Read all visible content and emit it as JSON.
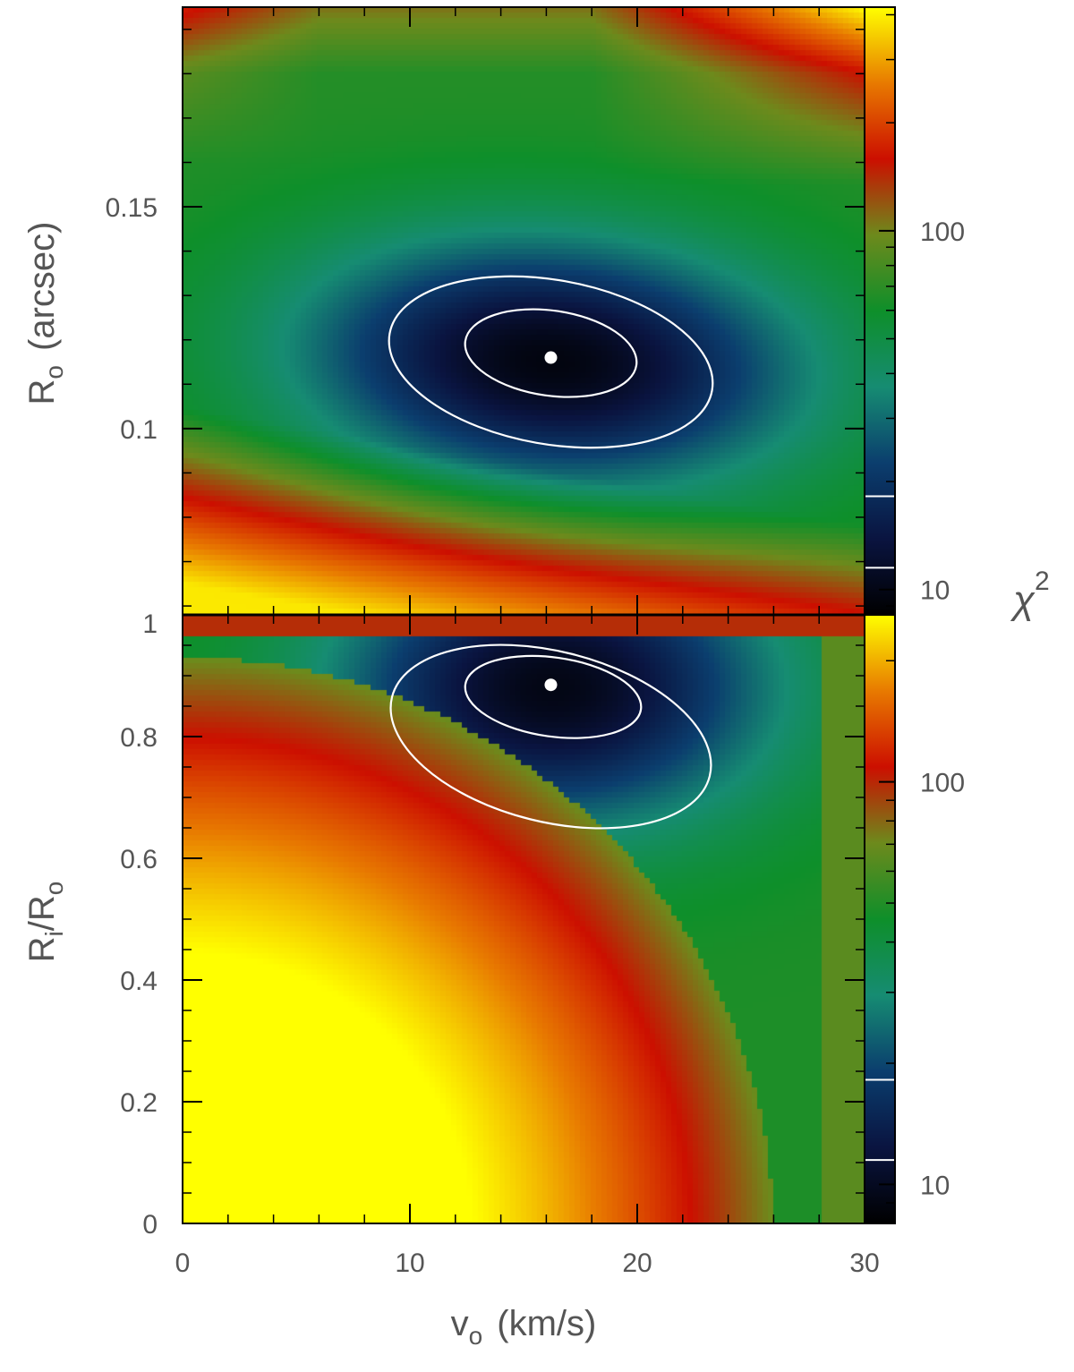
{
  "chart_data": [
    {
      "type": "heatmap",
      "panel": "top",
      "xlabel": "",
      "ylabel": {
        "main": "R",
        "sub": "o",
        "unit": "(arcsec)"
      },
      "xlim": [
        0,
        30
      ],
      "ylim": [
        0.058,
        0.195
      ],
      "yticks": [
        {
          "value": 0.1,
          "label": "0.1"
        },
        {
          "value": 0.15,
          "label": "0.15"
        }
      ],
      "best_fit": {
        "x": 16.2,
        "y": 0.116
      },
      "contours": [
        {
          "name": "inner",
          "center": [
            16.2,
            0.117
          ],
          "half_width": 3.8,
          "half_height": 0.0096,
          "tilt_deg": 8
        },
        {
          "name": "outer",
          "center": [
            16.2,
            0.115
          ],
          "half_width": 7.2,
          "half_height": 0.0185,
          "tilt_deg": 10
        }
      ],
      "colorbar": {
        "scale": "log",
        "range": [
          8.5,
          420
        ],
        "ticks": [
          {
            "value": 10,
            "label": "10"
          },
          {
            "value": 100,
            "label": "100"
          }
        ],
        "contour_levels": [
          11.5,
          18.2
        ],
        "title": "χ",
        "title_sup": "2"
      }
    },
    {
      "type": "heatmap",
      "panel": "bottom",
      "xlabel": {
        "main": "v",
        "sub": "o",
        "unit": "(km/s)"
      },
      "ylabel": {
        "main": "R",
        "sub": "i",
        "slash": "/R",
        "sub2": "o"
      },
      "xlim": [
        0,
        30
      ],
      "ylim": [
        0,
        1
      ],
      "xticks": [
        {
          "value": 0,
          "label": "0"
        },
        {
          "value": 10,
          "label": "10"
        },
        {
          "value": 20,
          "label": "20"
        },
        {
          "value": 30,
          "label": "30"
        }
      ],
      "yticks": [
        {
          "value": 0,
          "label": "0"
        },
        {
          "value": 0.2,
          "label": "0.2"
        },
        {
          "value": 0.4,
          "label": "0.4"
        },
        {
          "value": 0.6,
          "label": "0.6"
        },
        {
          "value": 0.8,
          "label": "0.8"
        },
        {
          "value": 1,
          "label": "1"
        }
      ],
      "best_fit": {
        "x": 16.2,
        "y": 0.885
      },
      "contours": [
        {
          "name": "inner",
          "center": [
            16.3,
            0.865
          ],
          "half_width": 3.9,
          "half_height": 0.065,
          "tilt_deg": 8
        },
        {
          "name": "outer",
          "center": [
            16.2,
            0.8
          ],
          "half_width": 7.2,
          "half_height": 0.14,
          "tilt_deg": 14
        }
      ],
      "colorbar": {
        "scale": "log",
        "range": [
          8,
          260
        ],
        "ticks": [
          {
            "value": 10,
            "label": "10"
          },
          {
            "value": 100,
            "label": "100"
          }
        ],
        "contour_levels": [
          11.5,
          18.2
        ]
      }
    }
  ],
  "colors": {
    "colormap": [
      "#000000",
      "#0a1440",
      "#0b3e6e",
      "#168c72",
      "#0e8f2a",
      "#6d8a1c",
      "#cc0f00",
      "#e87a00",
      "#ffff00"
    ],
    "contour": "#ffffff",
    "frame": "#000000"
  }
}
